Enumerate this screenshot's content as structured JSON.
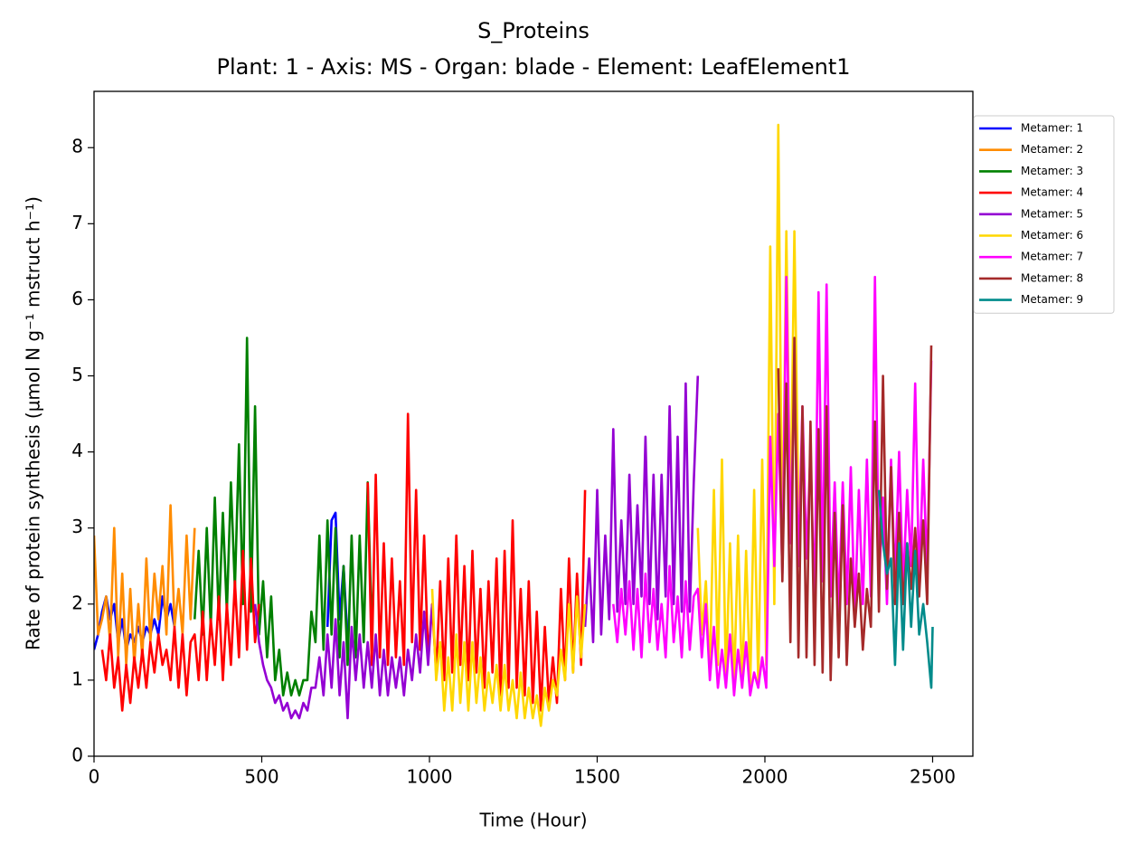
{
  "chart_data": {
    "type": "line",
    "title": "S_Proteins",
    "subtitle": "Plant: 1 - Axis: MS - Organ: blade - Element: LeafElement1",
    "xlabel": "Time (Hour)",
    "ylabel": "Rate of protein synthesis (µmol N g⁻¹ mstruct h⁻¹)",
    "xlim": [
      0,
      2620
    ],
    "xticks": [
      0,
      500,
      1000,
      1500,
      2000,
      2500
    ],
    "ylim": [
      0,
      8.74
    ],
    "yticks": [
      0,
      1,
      2,
      3,
      4,
      5,
      6,
      7,
      8
    ],
    "legend": "outside-upper-right",
    "series": [
      {
        "name": "Metamer: 1",
        "color": "#0000ff",
        "x": [
          0,
          12,
          24,
          36,
          48,
          60,
          72,
          84,
          96,
          108,
          120,
          132,
          144,
          156,
          168,
          180,
          192,
          204,
          216,
          228,
          240,
          252,
          696,
          708,
          720,
          732,
          744,
          756
        ],
        "values": [
          1.4,
          1.6,
          1.9,
          2.1,
          1.8,
          2.0,
          1.5,
          1.8,
          1.4,
          1.6,
          1.5,
          1.7,
          1.5,
          1.7,
          1.6,
          1.8,
          1.6,
          2.1,
          1.8,
          2.0,
          1.7,
          null,
          1.7,
          3.1,
          3.2,
          1.8,
          2.5,
          1.5
        ]
      },
      {
        "name": "Metamer: 2",
        "color": "#ff8c00",
        "x": [
          0,
          12,
          24,
          36,
          48,
          60,
          72,
          84,
          96,
          108,
          120,
          132,
          144,
          156,
          168,
          180,
          192,
          204,
          216,
          228,
          240,
          252,
          264,
          276,
          288,
          300
        ],
        "values": [
          2.9,
          1.6,
          1.8,
          2.1,
          1.5,
          3.0,
          1.3,
          2.4,
          1.2,
          2.2,
          1.2,
          2.0,
          1.3,
          2.6,
          1.5,
          2.4,
          1.8,
          2.5,
          1.6,
          3.3,
          1.7,
          2.2,
          1.6,
          2.9,
          1.8,
          3.0
        ]
      },
      {
        "name": "Metamer: 3",
        "color": "#008000",
        "x": [
          300,
          312,
          324,
          336,
          348,
          360,
          372,
          384,
          396,
          408,
          420,
          432,
          444,
          456,
          468,
          480,
          492,
          504,
          516,
          528,
          540,
          552,
          564,
          576,
          588,
          600,
          612,
          624,
          636,
          648,
          660,
          672,
          684,
          696,
          708,
          720,
          732,
          744,
          756,
          768,
          780,
          792,
          804,
          816,
          828
        ],
        "values": [
          1.8,
          2.7,
          1.6,
          3.0,
          1.7,
          3.4,
          1.8,
          3.2,
          1.9,
          3.6,
          2.2,
          4.1,
          2.0,
          5.5,
          1.9,
          4.6,
          1.6,
          2.3,
          1.3,
          2.1,
          1.0,
          1.4,
          0.8,
          1.1,
          0.8,
          1.0,
          0.8,
          1.0,
          1.0,
          1.9,
          1.5,
          2.9,
          1.4,
          3.1,
          1.6,
          3.0,
          1.3,
          2.5,
          1.2,
          2.9,
          1.3,
          2.9,
          1.5,
          3.6,
          1.7
        ]
      },
      {
        "name": "Metamer: 4",
        "color": "#ff0000",
        "x": [
          24,
          36,
          48,
          60,
          72,
          84,
          96,
          108,
          120,
          132,
          144,
          156,
          168,
          180,
          192,
          204,
          216,
          228,
          240,
          252,
          264,
          276,
          288,
          300,
          312,
          324,
          336,
          348,
          360,
          372,
          384,
          396,
          408,
          420,
          432,
          444,
          456,
          468,
          480,
          492,
          504,
          816,
          828,
          840,
          852,
          864,
          876,
          888,
          900,
          912,
          924,
          936,
          948,
          960,
          972,
          984,
          996,
          1008,
          1020,
          1032,
          1044,
          1056,
          1068,
          1080,
          1092,
          1104,
          1116,
          1128,
          1140,
          1152,
          1164,
          1176,
          1188,
          1200,
          1212,
          1224,
          1236,
          1248,
          1260,
          1272,
          1284,
          1296,
          1308,
          1320,
          1332,
          1344,
          1356,
          1368,
          1380,
          1392,
          1404,
          1416,
          1428,
          1440,
          1452,
          1464
        ],
        "values": [
          1.4,
          1.0,
          1.6,
          0.9,
          1.3,
          0.6,
          1.2,
          0.7,
          1.3,
          0.9,
          1.4,
          0.9,
          1.5,
          1.1,
          1.6,
          1.2,
          1.4,
          1.0,
          1.7,
          0.9,
          1.6,
          0.8,
          1.5,
          1.6,
          1.0,
          1.9,
          1.0,
          1.8,
          1.2,
          2.1,
          1.0,
          2.0,
          1.2,
          2.3,
          1.3,
          2.7,
          1.4,
          2.6,
          1.5,
          2.0,
          null,
          3.6,
          1.2,
          3.7,
          1.3,
          2.8,
          1.2,
          2.6,
          1.3,
          2.3,
          1.2,
          4.5,
          1.5,
          3.5,
          1.4,
          2.9,
          1.3,
          2.0,
          1.1,
          2.3,
          1.0,
          2.6,
          1.1,
          2.9,
          1.2,
          2.5,
          1.0,
          2.7,
          1.1,
          2.2,
          0.9,
          2.3,
          1.1,
          2.6,
          0.8,
          2.7,
          0.9,
          3.1,
          0.9,
          2.2,
          0.8,
          2.3,
          0.7,
          1.9,
          0.6,
          1.7,
          0.7,
          1.3,
          0.7,
          2.2,
          1.0,
          2.6,
          1.1,
          2.4,
          1.2,
          3.5
        ]
      },
      {
        "name": "Metamer: 5",
        "color": "#9400d3",
        "x": [
          480,
          492,
          504,
          516,
          528,
          540,
          552,
          564,
          576,
          588,
          600,
          612,
          624,
          636,
          648,
          660,
          672,
          684,
          696,
          708,
          720,
          732,
          744,
          756,
          768,
          780,
          792,
          804,
          816,
          828,
          840,
          852,
          864,
          876,
          888,
          900,
          912,
          924,
          936,
          948,
          960,
          972,
          984,
          996,
          1008,
          1020,
          1464,
          1476,
          1488,
          1500,
          1512,
          1524,
          1536,
          1548,
          1560,
          1572,
          1584,
          1596,
          1608,
          1620,
          1632,
          1644,
          1656,
          1668,
          1680,
          1692,
          1704,
          1716,
          1728,
          1740,
          1752,
          1764,
          1776,
          1788,
          1800
        ],
        "values": [
          2.0,
          1.5,
          1.2,
          1.0,
          0.9,
          0.7,
          0.8,
          0.6,
          0.7,
          0.5,
          0.6,
          0.5,
          0.7,
          0.6,
          0.9,
          0.9,
          1.3,
          0.8,
          1.6,
          0.9,
          1.8,
          0.8,
          1.5,
          0.5,
          1.7,
          1.0,
          1.6,
          0.9,
          1.5,
          0.9,
          1.6,
          0.8,
          1.4,
          0.8,
          1.3,
          0.9,
          1.3,
          0.8,
          1.4,
          1.0,
          1.6,
          1.1,
          1.9,
          1.2,
          2.0,
          null,
          1.7,
          2.6,
          1.5,
          3.5,
          1.6,
          2.9,
          1.8,
          4.3,
          1.9,
          3.1,
          2.0,
          3.7,
          2.0,
          3.3,
          2.1,
          4.2,
          2.0,
          3.7,
          1.8,
          3.7,
          2.1,
          4.6,
          2.0,
          4.2,
          1.9,
          4.9,
          1.9,
          3.6,
          5.0
        ]
      },
      {
        "name": "Metamer: 6",
        "color": "#ffd700",
        "x": [
          1008,
          1020,
          1032,
          1044,
          1056,
          1068,
          1080,
          1092,
          1104,
          1116,
          1128,
          1140,
          1152,
          1164,
          1176,
          1188,
          1200,
          1212,
          1224,
          1236,
          1248,
          1260,
          1272,
          1284,
          1296,
          1308,
          1320,
          1332,
          1344,
          1356,
          1368,
          1380,
          1392,
          1404,
          1416,
          1428,
          1440,
          1452,
          1464,
          1476,
          1800,
          1812,
          1824,
          1836,
          1848,
          1860,
          1872,
          1884,
          1896,
          1908,
          1920,
          1932,
          1944,
          1956,
          1968,
          1980,
          1992,
          2004,
          2016,
          2028,
          2040,
          2052,
          2064,
          2076,
          2088,
          2100
        ],
        "values": [
          2.2,
          1.0,
          1.5,
          0.6,
          1.3,
          0.6,
          1.6,
          0.7,
          1.5,
          0.6,
          1.5,
          0.7,
          1.3,
          0.6,
          1.1,
          0.7,
          1.2,
          0.6,
          1.2,
          0.6,
          1.0,
          0.5,
          1.1,
          0.5,
          0.9,
          0.5,
          0.8,
          0.4,
          0.9,
          0.6,
          1.0,
          0.8,
          1.4,
          1.0,
          2.0,
          1.1,
          2.1,
          1.3,
          2.0,
          null,
          3.0,
          1.6,
          2.3,
          1.1,
          3.5,
          1.2,
          3.9,
          1.0,
          2.8,
          0.9,
          2.9,
          0.9,
          2.7,
          0.9,
          3.5,
          1.0,
          3.9,
          1.2,
          6.7,
          2.0,
          8.3,
          2.5,
          6.9,
          3.0,
          6.9,
          3.2
        ]
      },
      {
        "name": "Metamer: 7",
        "color": "#ff00ff",
        "x": [
          1548,
          1560,
          1572,
          1584,
          1596,
          1608,
          1620,
          1632,
          1644,
          1656,
          1668,
          1680,
          1692,
          1704,
          1716,
          1728,
          1740,
          1752,
          1764,
          1776,
          1788,
          1800,
          1812,
          1824,
          1836,
          1848,
          1860,
          1872,
          1884,
          1896,
          1908,
          1920,
          1932,
          1944,
          1956,
          1968,
          1980,
          1992,
          2004,
          2016,
          2028,
          2040,
          2052,
          2064,
          2076,
          2088,
          2100,
          2112,
          2124,
          2136,
          2148,
          2160,
          2172,
          2184,
          2196,
          2208,
          2220,
          2232,
          2244,
          2256,
          2268,
          2280,
          2292,
          2304,
          2316,
          2328,
          2340,
          2352,
          2364,
          2376,
          2388,
          2400,
          2412,
          2424,
          2436,
          2448,
          2460,
          2472,
          2484,
          2496
        ],
        "values": [
          2.0,
          1.5,
          2.2,
          1.6,
          2.3,
          1.4,
          2.2,
          1.3,
          2.4,
          1.5,
          2.2,
          1.4,
          2.0,
          1.3,
          2.5,
          1.5,
          2.1,
          1.3,
          2.3,
          1.4,
          2.1,
          2.2,
          1.3,
          2.0,
          1.0,
          1.7,
          0.9,
          1.4,
          0.9,
          1.6,
          0.8,
          1.4,
          0.9,
          1.5,
          0.8,
          1.1,
          0.9,
          1.3,
          0.9,
          4.2,
          2.5,
          4.5,
          2.4,
          6.3,
          2.8,
          5.0,
          2.5,
          4.6,
          2.6,
          4.0,
          2.0,
          6.1,
          2.3,
          6.2,
          2.1,
          3.6,
          1.9,
          3.6,
          2.0,
          3.8,
          1.8,
          3.5,
          2.0,
          3.9,
          2.1,
          6.3,
          2.3,
          3.4,
          2.0,
          3.9,
          2.3,
          4.0,
          2.2,
          3.5,
          2.5,
          4.9,
          2.3,
          3.9,
          2.4,
          5.2
        ]
      },
      {
        "name": "Metamer: 8",
        "color": "#a52a2a",
        "x": [
          2040,
          2052,
          2064,
          2076,
          2088,
          2100,
          2112,
          2124,
          2136,
          2148,
          2160,
          2172,
          2184,
          2196,
          2208,
          2220,
          2232,
          2244,
          2256,
          2268,
          2280,
          2292,
          2304,
          2316,
          2328,
          2340,
          2352,
          2364,
          2376,
          2388,
          2400,
          2412,
          2424,
          2436,
          2448,
          2460,
          2472,
          2484,
          2496
        ],
        "values": [
          5.1,
          2.3,
          4.9,
          1.5,
          5.5,
          1.3,
          4.6,
          1.3,
          4.4,
          1.2,
          4.3,
          1.1,
          4.6,
          1.0,
          3.2,
          1.3,
          3.3,
          1.2,
          2.6,
          1.7,
          2.4,
          1.4,
          2.2,
          1.7,
          4.4,
          1.9,
          5.0,
          2.2,
          3.8,
          2.0,
          3.2,
          2.0,
          2.8,
          2.2,
          3.0,
          2.1,
          3.1,
          2.0,
          5.4
        ]
      },
      {
        "name": "Metamer: 9",
        "color": "#008b8b",
        "x": [
          2340,
          2352,
          2364,
          2376,
          2388,
          2400,
          2412,
          2424,
          2436,
          2448,
          2460,
          2472,
          2484,
          2496,
          2500
        ],
        "values": [
          3.5,
          2.8,
          2.4,
          2.6,
          1.2,
          2.8,
          1.4,
          2.8,
          1.7,
          2.7,
          1.6,
          2.0,
          1.5,
          0.9,
          1.7
        ]
      }
    ]
  }
}
